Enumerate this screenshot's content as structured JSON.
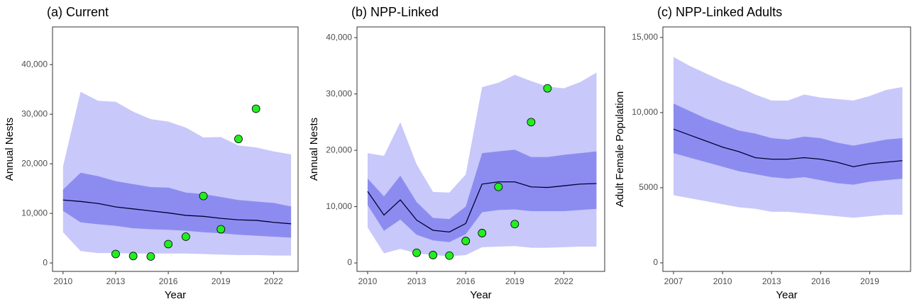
{
  "chart_data": [
    {
      "type": "band-line",
      "title": "(a) Current",
      "x_label": "Year",
      "y_label": "Annual Nests",
      "x": [
        2010,
        2011,
        2012,
        2013,
        2014,
        2015,
        2016,
        2017,
        2018,
        2019,
        2020,
        2021,
        2022,
        2023
      ],
      "band_outer": {
        "color": "#c8c8fa",
        "lower": [
          6200,
          2400,
          2000,
          2000,
          1900,
          1900,
          1900,
          1900,
          1800,
          1700,
          1600,
          1600,
          1500,
          1500
        ],
        "upper": [
          19500,
          34500,
          32700,
          32500,
          30500,
          29000,
          28500,
          27300,
          25300,
          25400,
          23700,
          23300,
          22500,
          21900
        ]
      },
      "band_inner": {
        "color": "#8c8cf0",
        "lower": [
          10500,
          8200,
          7800,
          7500,
          7000,
          6800,
          6700,
          6500,
          6200,
          6000,
          5700,
          5500,
          5300,
          5100
        ],
        "upper": [
          14800,
          18200,
          17500,
          16500,
          15900,
          15300,
          15200,
          14200,
          13900,
          13300,
          12700,
          12400,
          12100,
          11400
        ]
      },
      "line": {
        "color": "#000033",
        "values": [
          12700,
          12400,
          12000,
          11300,
          10900,
          10500,
          10100,
          9600,
          9400,
          9000,
          8700,
          8600,
          8200,
          7900
        ]
      },
      "points": {
        "color": "#22ee22",
        "x": [
          2013,
          2014,
          2015,
          2016,
          2017,
          2018,
          2019,
          2020,
          2021
        ],
        "values": [
          1800,
          1400,
          1300,
          3800,
          5300,
          13500,
          6800,
          25000,
          31100
        ]
      },
      "xlim": [
        2009.4,
        2023.4
      ],
      "ylim": [
        -1700,
        47600
      ],
      "xticks": [
        2010,
        2013,
        2016,
        2019,
        2022
      ],
      "yticks": [
        0,
        {
          "value": 10000,
          "label": "10,000"
        },
        {
          "value": 20000,
          "label": "20,000"
        },
        {
          "value": 30000,
          "label": "30,000"
        },
        {
          "value": 40000,
          "label": "40,000"
        }
      ]
    },
    {
      "type": "band-line",
      "title": "(b) NPP-Linked",
      "x_label": "Year",
      "y_label": "Annual Nests",
      "x": [
        2010,
        2011,
        2012,
        2013,
        2014,
        2015,
        2016,
        2017,
        2018,
        2019,
        2020,
        2021,
        2022,
        2023,
        2024
      ],
      "band_outer": {
        "color": "#c8c8fa",
        "lower": [
          6300,
          1700,
          2500,
          1700,
          1400,
          1200,
          1400,
          2800,
          2900,
          3000,
          2700,
          2700,
          2800,
          2900,
          2900
        ],
        "upper": [
          19500,
          19000,
          25000,
          17500,
          12600,
          12500,
          15700,
          31200,
          32000,
          33400,
          32300,
          31300,
          31000,
          32100,
          33800
        ]
      },
      "band_inner": {
        "color": "#8c8cf0",
        "lower": [
          10300,
          5700,
          7700,
          5000,
          4000,
          3700,
          5100,
          9000,
          9400,
          9500,
          9200,
          9200,
          9200,
          9400,
          9600
        ],
        "upper": [
          15000,
          11800,
          15500,
          10800,
          8000,
          7800,
          10000,
          19500,
          19800,
          20100,
          18800,
          18800,
          19200,
          19500,
          19800
        ]
      },
      "line": {
        "color": "#000033",
        "values": [
          12700,
          8500,
          11200,
          7600,
          5800,
          5500,
          7000,
          14000,
          14400,
          14400,
          13500,
          13400,
          13700,
          14000,
          14100
        ]
      },
      "points": {
        "color": "#22ee22",
        "x": [
          2013,
          2014,
          2015,
          2016,
          2017,
          2018,
          2019,
          2020,
          2021
        ],
        "values": [
          1800,
          1400,
          1300,
          3900,
          5300,
          13500,
          6900,
          25000,
          31000
        ]
      },
      "xlim": [
        2009.35,
        2024.5
      ],
      "ylim": [
        -1500,
        41900
      ],
      "xticks": [
        2010,
        2013,
        2016,
        2019,
        2022
      ],
      "yticks": [
        0,
        {
          "value": 10000,
          "label": "10,000"
        },
        {
          "value": 20000,
          "label": "20,000"
        },
        {
          "value": 30000,
          "label": "30,000"
        },
        {
          "value": 40000,
          "label": "40,000"
        }
      ]
    },
    {
      "type": "band-line",
      "title": "(c) NPP-Linked Adults",
      "x_label": "Year",
      "y_label": "Adult Female Population",
      "x": [
        2007,
        2008,
        2009,
        2010,
        2011,
        2012,
        2013,
        2014,
        2015,
        2016,
        2017,
        2018,
        2019,
        2020,
        2021
      ],
      "band_outer": {
        "color": "#c8c8fa",
        "lower": [
          4500,
          4300,
          4100,
          3900,
          3700,
          3600,
          3400,
          3400,
          3300,
          3200,
          3100,
          3000,
          3100,
          3200,
          3200
        ],
        "upper": [
          13700,
          13100,
          12600,
          12100,
          11700,
          11200,
          10800,
          10800,
          11200,
          11000,
          10900,
          10800,
          11100,
          11500,
          11700
        ]
      },
      "band_inner": {
        "color": "#8c8cf0",
        "lower": [
          7300,
          7000,
          6700,
          6400,
          6100,
          5900,
          5700,
          5600,
          5700,
          5500,
          5300,
          5200,
          5400,
          5500,
          5600
        ],
        "upper": [
          10600,
          10100,
          9600,
          9200,
          8800,
          8600,
          8300,
          8200,
          8400,
          8300,
          8000,
          7800,
          8000,
          8200,
          8300
        ]
      },
      "line": {
        "color": "#000033",
        "values": [
          8900,
          8500,
          8100,
          7700,
          7400,
          7000,
          6900,
          6900,
          7000,
          6900,
          6700,
          6400,
          6600,
          6700,
          6800
        ]
      },
      "xlim": [
        2006.35,
        2021.5
      ],
      "ylim": [
        -570,
        15700
      ],
      "xticks": [
        2007,
        2010,
        2013,
        2016,
        2019
      ],
      "yticks": [
        0,
        {
          "value": 5000,
          "label": "5000"
        },
        {
          "value": 10000,
          "label": "10,000"
        },
        {
          "value": 15000,
          "label": "15,000"
        }
      ]
    }
  ]
}
